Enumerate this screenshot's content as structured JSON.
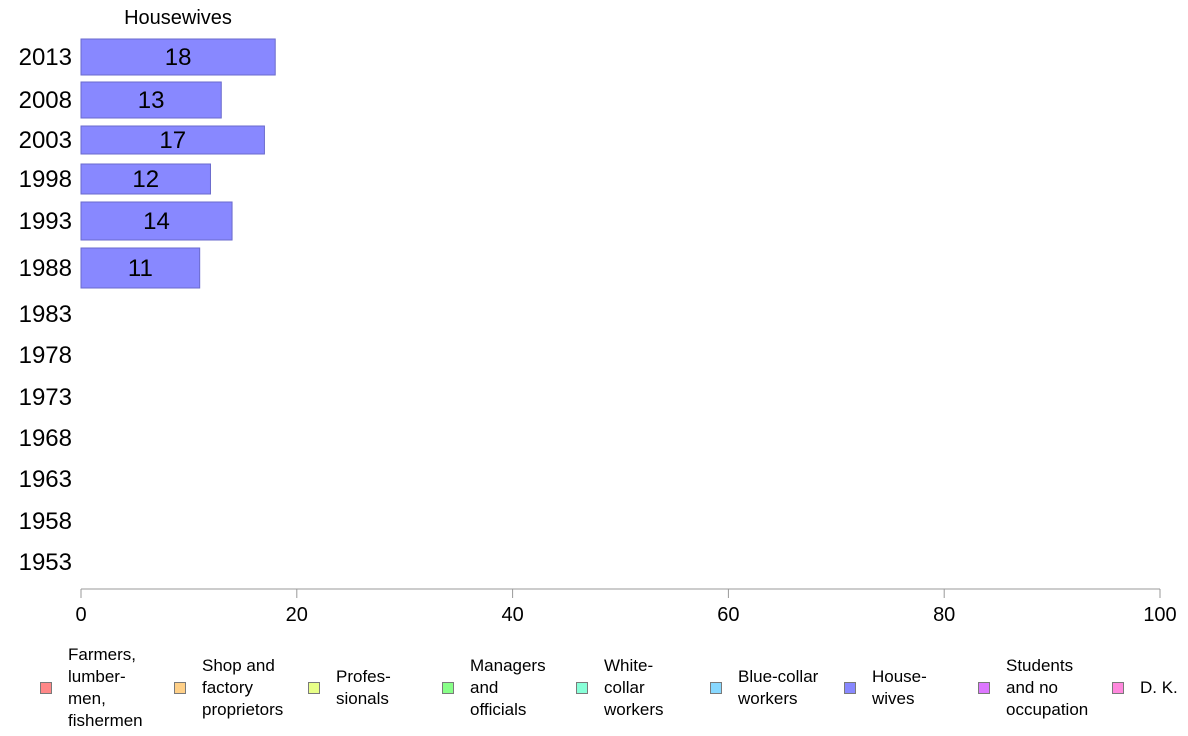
{
  "chart_data": {
    "type": "bar",
    "orientation": "horizontal",
    "panel_title": "Housewives",
    "categories": [
      "2013",
      "2008",
      "2003",
      "1998",
      "1993",
      "1988",
      "1983",
      "1978",
      "1973",
      "1968",
      "1963",
      "1958",
      "1953"
    ],
    "series": [
      {
        "name": "House-\nwives",
        "values": [
          18,
          13,
          17,
          12,
          14,
          11,
          null,
          null,
          null,
          null,
          null,
          null,
          null
        ]
      }
    ],
    "xlim": [
      0,
      100
    ],
    "xticks": [
      0,
      20,
      40,
      60,
      80,
      100
    ],
    "xlabel": "",
    "ylabel": "",
    "grid": false,
    "bar_color": "#8888ff",
    "bar_stroke": "#6a6acc",
    "legend_position": "bottom",
    "legend": [
      {
        "label": "Farmers,\nlumber-\nmen,\nfishermen",
        "color": "#ff8888"
      },
      {
        "label": "Shop and\nfactory\nproprietors",
        "color": "#ffd088"
      },
      {
        "label": "Profes-\nsionals",
        "color": "#e8ff88"
      },
      {
        "label": "Managers\nand\nofficials",
        "color": "#88ff88"
      },
      {
        "label": "White-\ncollar\nworkers",
        "color": "#88ffd8"
      },
      {
        "label": "Blue-collar\nworkers",
        "color": "#88d8ff"
      },
      {
        "label": "House-\nwives",
        "color": "#8888ff"
      },
      {
        "label": "Students\nand no\noccupation",
        "color": "#dd77ff"
      },
      {
        "label": "D. K.",
        "color": "#ff88dd"
      }
    ]
  }
}
